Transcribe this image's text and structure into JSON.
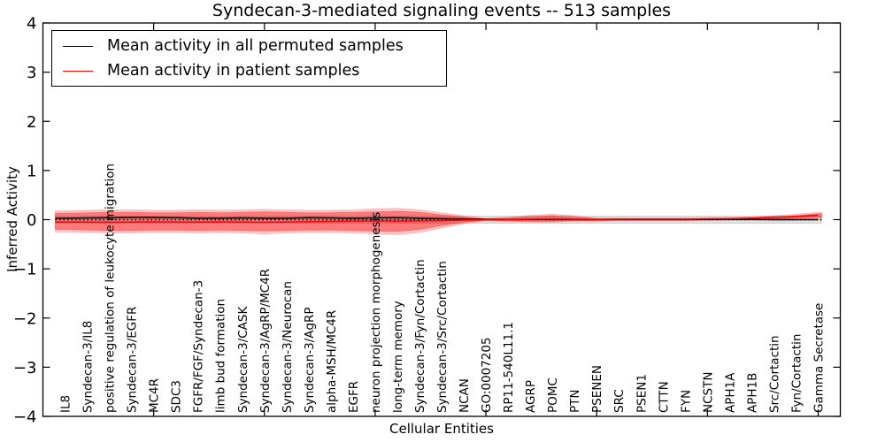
{
  "figure": {
    "title": "Syndecan-3-mediated signaling events -- 513 samples",
    "xlabel": "Cellular Entities",
    "ylabel": "Inferred Activity"
  },
  "legend": {
    "position": "upper left",
    "entries": [
      {
        "label": "Mean activity in all permuted samples",
        "color": "#000000"
      },
      {
        "label": "Mean activity in patient samples",
        "color": "#ff0000"
      }
    ]
  },
  "chart_data": {
    "type": "line",
    "title": "Syndecan-3-mediated signaling events -- 513 samples",
    "xlabel": "Cellular Entities",
    "ylabel": "Inferred Activity",
    "grid": false,
    "ylim": [
      -4,
      4
    ],
    "xlim": [
      0,
      36
    ],
    "xtick_interval": 5,
    "yticks": [
      4,
      3,
      2,
      1,
      0,
      -1,
      -2,
      -3,
      -4
    ],
    "ytick_labels": [
      "4",
      "3",
      "2",
      "1",
      "0",
      "−1",
      "−2",
      "−3",
      "−4"
    ],
    "categories": [
      "IL8",
      "Syndecan-3/IL8",
      "positive regulation of leukocyte migration",
      "Syndecan-3/EGFR",
      "MC4R",
      "SDC3",
      "FGFR/FGF/Syndecan-3",
      "limb bud formation",
      "Syndecan-3/CASK",
      "Syndecan-3/AgRP/MC4R",
      "Syndecan-3/Neurocan",
      "Syndecan-3/AgRP",
      "alpha-MSH/MC4R",
      "EGFR",
      "neuron projection morphogenesis",
      "long-term memory",
      "Syndecan-3/Fyn/Cortactin",
      "Syndecan-3/Src/Cortactin",
      "NCAN",
      "GO:0007205",
      "RP11-540L11.1",
      "AGRP",
      "POMC",
      "PTN",
      "PSENEN",
      "SRC",
      "PSEN1",
      "CTTN",
      "FYN",
      "NCSTN",
      "APH1A",
      "APH1B",
      "Src/Cortactin",
      "Fyn/Cortactin",
      "Gamma Secretase"
    ],
    "series": [
      {
        "name": "Mean activity in all permuted samples",
        "color": "#000000",
        "style": "solid",
        "values": [
          0.03,
          0.035,
          0.04,
          0.05,
          0.045,
          0.04,
          0.03,
          0.03,
          0.035,
          0.03,
          0.03,
          0.04,
          0.035,
          0.03,
          0.035,
          0.04,
          0.03,
          0.02,
          0.015,
          0.01,
          0.005,
          0.005,
          0.01,
          0.005,
          0.005,
          0.005,
          0.005,
          0.005,
          0.005,
          0.005,
          0.005,
          0.005,
          0.0,
          0.0,
          0.0
        ]
      },
      {
        "name": "Mean activity in patient samples",
        "color": "#ff0000",
        "style": "solid",
        "values": [
          -0.05,
          -0.05,
          -0.055,
          -0.05,
          -0.045,
          -0.05,
          -0.05,
          -0.045,
          -0.05,
          -0.055,
          -0.05,
          -0.04,
          -0.035,
          -0.03,
          -0.025,
          -0.03,
          -0.025,
          -0.02,
          -0.01,
          0.0,
          0.005,
          0.01,
          0.015,
          0.01,
          0.005,
          0.01,
          0.01,
          0.01,
          0.01,
          0.015,
          0.02,
          0.03,
          0.045,
          0.065,
          0.09
        ]
      }
    ],
    "zero_line": {
      "value": 0,
      "color": "#000000",
      "style": "dotted"
    },
    "bands": [
      {
        "name": "permuted-samples-band",
        "color": "rgba(0,0,0,0.12)",
        "edge": "rgba(140,140,140,0.45)",
        "upper_const": 0.07,
        "lower_const": -0.07
      },
      {
        "name": "patient-band-outer",
        "color": "rgba(255,0,0,0.22)",
        "edge": "rgba(240,120,120,0.45)",
        "upper": [
          0.18,
          0.19,
          0.2,
          0.2,
          0.19,
          0.19,
          0.2,
          0.19,
          0.2,
          0.21,
          0.2,
          0.19,
          0.19,
          0.2,
          0.22,
          0.23,
          0.2,
          0.14,
          0.08,
          0.02,
          0.05,
          0.09,
          0.11,
          0.08,
          0.03,
          0.03,
          0.03,
          0.03,
          0.03,
          0.04,
          0.04,
          0.06,
          0.08,
          0.11,
          0.15
        ],
        "lower": [
          -0.25,
          -0.26,
          -0.27,
          -0.27,
          -0.26,
          -0.26,
          -0.27,
          -0.26,
          -0.27,
          -0.29,
          -0.27,
          -0.26,
          -0.26,
          -0.27,
          -0.29,
          -0.3,
          -0.26,
          -0.17,
          -0.08,
          -0.02,
          -0.04,
          -0.05,
          -0.05,
          -0.03,
          -0.03,
          -0.02,
          -0.02,
          -0.02,
          -0.02,
          -0.02,
          -0.01,
          -0.01,
          0.0,
          0.01,
          0.03
        ]
      },
      {
        "name": "patient-band-inner",
        "color": "rgba(255,0,0,0.38)",
        "edge": "rgba(220,50,50,0.45)",
        "upper": [
          0.13,
          0.14,
          0.15,
          0.15,
          0.14,
          0.14,
          0.15,
          0.14,
          0.15,
          0.16,
          0.15,
          0.14,
          0.14,
          0.15,
          0.16,
          0.17,
          0.15,
          0.1,
          0.05,
          0.01,
          0.03,
          0.06,
          0.08,
          0.05,
          0.02,
          0.02,
          0.02,
          0.02,
          0.02,
          0.02,
          0.03,
          0.04,
          0.06,
          0.08,
          0.12
        ],
        "lower": [
          -0.2,
          -0.21,
          -0.22,
          -0.22,
          -0.21,
          -0.21,
          -0.22,
          -0.21,
          -0.22,
          -0.23,
          -0.22,
          -0.21,
          -0.21,
          -0.22,
          -0.23,
          -0.24,
          -0.2,
          -0.12,
          -0.05,
          -0.01,
          -0.02,
          -0.03,
          -0.03,
          -0.02,
          -0.02,
          -0.01,
          -0.01,
          -0.01,
          -0.01,
          0.0,
          0.0,
          0.0,
          0.01,
          0.03,
          0.05
        ]
      }
    ]
  }
}
